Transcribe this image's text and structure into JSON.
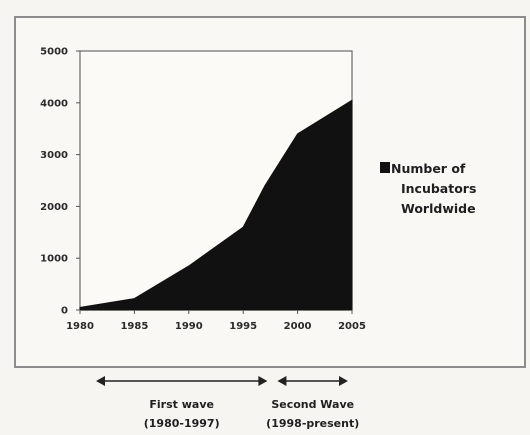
{
  "chart_data": {
    "type": "area",
    "x": [
      1980,
      1985,
      1990,
      1995,
      1997,
      2000,
      2005
    ],
    "series": [
      {
        "name": "Number of Incubators Worldwide",
        "values": [
          50,
          220,
          850,
          1600,
          2400,
          3400,
          4050
        ],
        "color": "#111111"
      }
    ],
    "xlim": [
      1980,
      2005
    ],
    "ylim": [
      0,
      5000
    ],
    "x_ticks": [
      "1980",
      "1985",
      "1990",
      "1995",
      "2000",
      "2005"
    ],
    "y_ticks": [
      "0",
      "1000",
      "2000",
      "3000",
      "4000",
      "5000"
    ],
    "legend_label_lines": [
      "Number of",
      "Incubators",
      "Worldwide"
    ],
    "legend_position": "right",
    "grid": false,
    "annotations": [
      {
        "from": 1980,
        "to": 1997,
        "lines": [
          "First wave",
          "(1980-1997)"
        ]
      },
      {
        "from": 1998,
        "to": 2005,
        "lines": [
          "Second Wave",
          "(1998-present)"
        ]
      }
    ]
  }
}
